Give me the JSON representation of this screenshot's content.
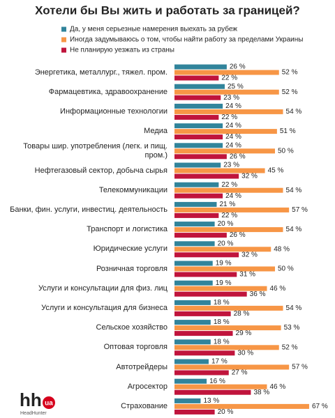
{
  "chart_data": {
    "type": "bar",
    "orientation": "horizontal",
    "title": "Хотели бы Вы жить и работать за границей?",
    "categories": [
      "Энергетика, металлург., тяжел. пром.",
      "Фармацевтика, здравоохранение",
      "Информационные технологии",
      "Медиа",
      "Товары шир. употребления (легк. и пищ. пром.)",
      "Нефтегазовый сектор, добыча сырья",
      "Телекоммуникации",
      "Банки, фин. услуги, инвестиц. деятельность",
      "Транспорт и логистика",
      "Юридические услуги",
      "Розничная торговля",
      "Услуги и консультации для физ. лиц",
      "Услуги и консультация для бизнеса",
      "Сельское хозяйство",
      "Оптовая торговля",
      "Автотрейдеры",
      "Агросектор",
      "Страхование"
    ],
    "series": [
      {
        "name": "Да, у меня серьезные намерения выехать за рубеж",
        "color": "#31849b",
        "values": [
          26,
          25,
          24,
          24,
          24,
          23,
          22,
          21,
          20,
          20,
          19,
          19,
          18,
          18,
          18,
          17,
          16,
          13
        ],
        "value_labels": [
          "26 %",
          "25 %",
          "24 %",
          "24 %",
          "24 %",
          "23 %",
          "22 %",
          "21 %",
          "20 %",
          "20 %",
          "19 %",
          "19 %",
          "18 %",
          "18 %",
          "18 %",
          "17 %",
          "16 %",
          "13 %"
        ]
      },
      {
        "name": "Иногда задумываюсь о том, чтобы найти работу за пределами Украины",
        "color": "#f79646",
        "values": [
          52,
          52,
          54,
          51,
          50,
          45,
          54,
          57,
          54,
          48,
          50,
          46,
          54,
          53,
          52,
          57,
          46,
          67
        ],
        "value_labels": [
          "52 %",
          "52 %",
          "54 %",
          "51 %",
          "50 %",
          "45 %",
          "54 %",
          "57 %",
          "54 %",
          "48 %",
          "50 %",
          "46 %",
          "54 %",
          "53 %",
          "52 %",
          "57 %",
          "46 %",
          "67 %"
        ]
      },
      {
        "name": "Не планирую уезжать из страны",
        "color": "#c0143c",
        "values": [
          22,
          23,
          22,
          24,
          26,
          32,
          24,
          22,
          26,
          32,
          31,
          36,
          28,
          29,
          30,
          27,
          38,
          20
        ],
        "value_labels": [
          "22 %",
          "23 %",
          "22 %",
          "24 %",
          "26 %",
          "32 %",
          "24 %",
          "22 %",
          "26 %",
          "32 %",
          "31 %",
          "36 %",
          "28 %",
          "29 %",
          "30 %",
          "27 %",
          "38 %",
          "20 %"
        ]
      }
    ]
  },
  "logo": {
    "mark": "hh",
    "region": "ua",
    "name": "HeadHunter"
  }
}
